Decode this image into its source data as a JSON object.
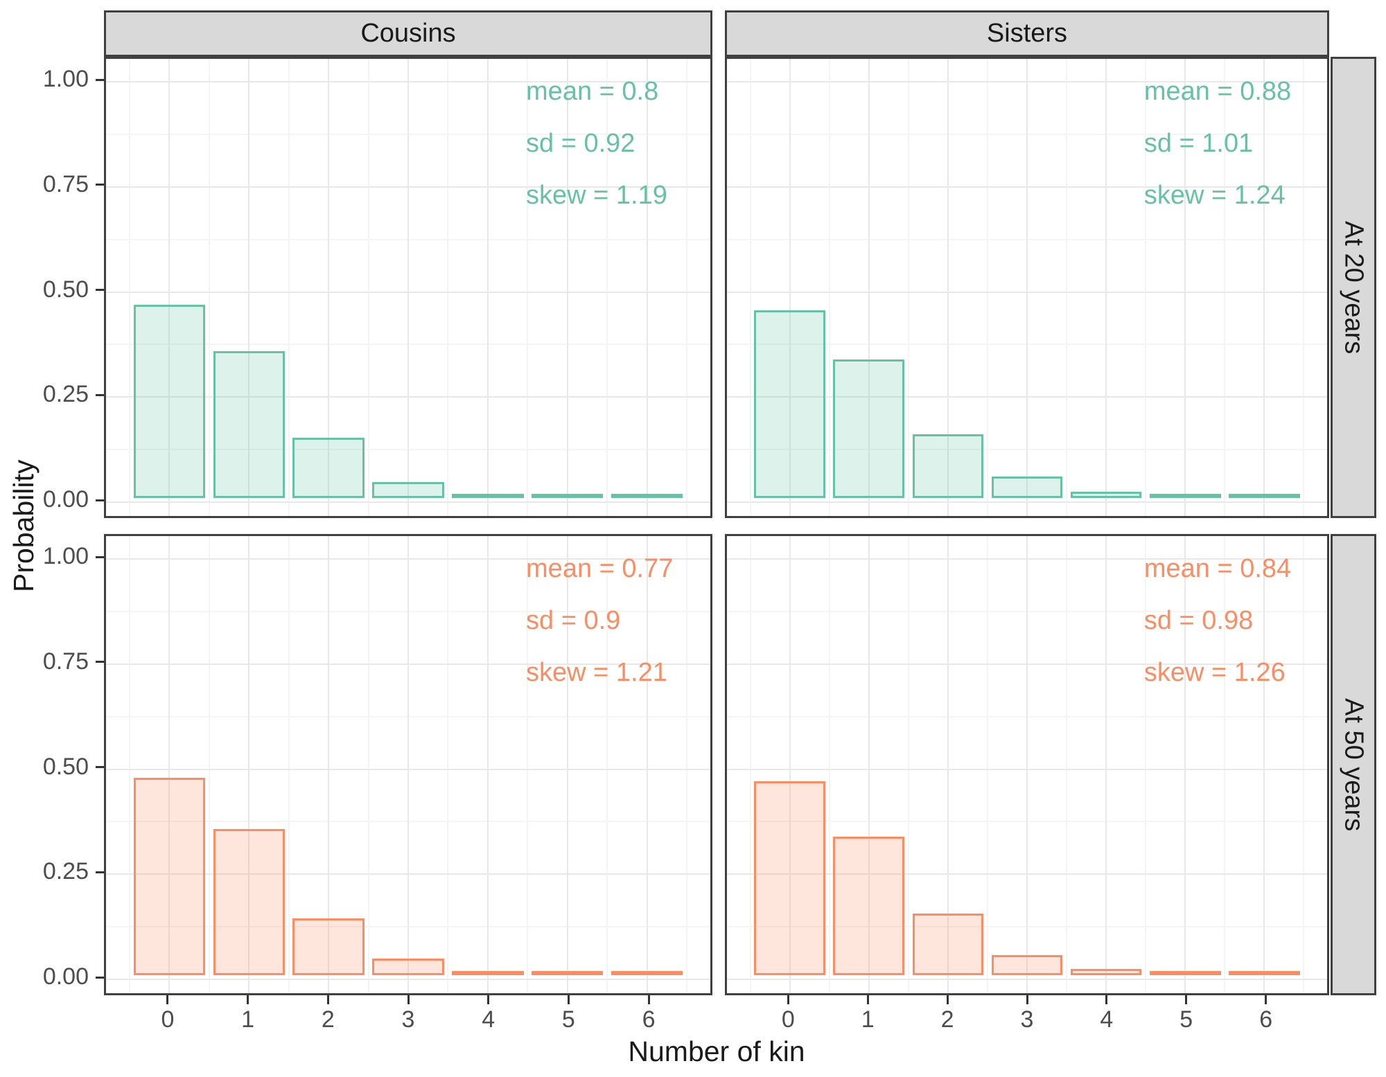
{
  "figure": {
    "x_axis_title": "Number of kin",
    "y_axis_title": "Probability",
    "column_facets": [
      "Cousins",
      "Sisters"
    ],
    "row_facets": [
      "At 20 years",
      "At 50 years"
    ],
    "y_tick_labels": [
      "1.00",
      "0.75",
      "0.50",
      "0.25",
      "0.00"
    ],
    "x_tick_labels": [
      "0",
      "1",
      "2",
      "3",
      "4",
      "5",
      "6"
    ],
    "colors": {
      "at20_accent": "#66c2a5",
      "at20_fill": "rgba(102,194,165,0.22)",
      "at50_accent": "#fc8d62",
      "at50_fill": "rgba(252,141,98,0.22)",
      "strip_background": "#d9d9d9",
      "panel_border": "#404040",
      "grid_major": "#e8e8e8",
      "grid_minor": "#f4f4f4",
      "tick_text": "#4d4d4d",
      "title_text": "#1a1a1a"
    }
  },
  "chart_data": [
    {
      "type": "bar",
      "facet_col": "Cousins",
      "facet_row": "At 20 years",
      "categories": [
        0,
        1,
        2,
        3,
        4,
        5,
        6
      ],
      "values": [
        0.46,
        0.35,
        0.144,
        0.038,
        0.009,
        0.003,
        0.001
      ],
      "annotation_lines": [
        "mean = 0.8",
        "sd = 0.92",
        "skew = 1.19"
      ],
      "stats": {
        "mean": 0.8,
        "sd": 0.92,
        "skew": 1.19
      },
      "accent": "#66c2a5",
      "fill": "rgba(102,194,165,0.22)",
      "xlabel": "Number of kin",
      "ylabel": "Probability",
      "ylim": [
        0,
        1.05
      ],
      "y_breaks": [
        0,
        0.25,
        0.5,
        0.75,
        1
      ],
      "grid": true,
      "legend": "none"
    },
    {
      "type": "bar",
      "facet_col": "Sisters",
      "facet_row": "At 20 years",
      "categories": [
        0,
        1,
        2,
        3,
        4,
        5,
        6
      ],
      "values": [
        0.446,
        0.33,
        0.152,
        0.051,
        0.015,
        0.005,
        0.002
      ],
      "annotation_lines": [
        "mean = 0.88",
        "sd = 1.01",
        "skew = 1.24"
      ],
      "stats": {
        "mean": 0.88,
        "sd": 1.01,
        "skew": 1.24
      },
      "accent": "#66c2a5",
      "fill": "rgba(102,194,165,0.22)",
      "xlabel": "Number of kin",
      "ylabel": "Probability",
      "ylim": [
        0,
        1.05
      ],
      "y_breaks": [
        0,
        0.25,
        0.5,
        0.75,
        1
      ],
      "grid": true,
      "legend": "none"
    },
    {
      "type": "bar",
      "facet_col": "Cousins",
      "facet_row": "At 50 years",
      "categories": [
        0,
        1,
        2,
        3,
        4,
        5,
        6
      ],
      "values": [
        0.47,
        0.347,
        0.135,
        0.039,
        0.009,
        0.003,
        0.001
      ],
      "annotation_lines": [
        "mean = 0.77",
        "sd = 0.9",
        "skew = 1.21"
      ],
      "stats": {
        "mean": 0.77,
        "sd": 0.9,
        "skew": 1.21
      },
      "accent": "#fc8d62",
      "fill": "rgba(252,141,98,0.22)",
      "xlabel": "Number of kin",
      "ylabel": "Probability",
      "ylim": [
        0,
        1.05
      ],
      "y_breaks": [
        0,
        0.25,
        0.5,
        0.75,
        1
      ],
      "grid": true,
      "legend": "none"
    },
    {
      "type": "bar",
      "facet_col": "Sisters",
      "facet_row": "At 50 years",
      "categories": [
        0,
        1,
        2,
        3,
        4,
        5,
        6
      ],
      "values": [
        0.461,
        0.329,
        0.146,
        0.048,
        0.015,
        0.004,
        0.002
      ],
      "annotation_lines": [
        "mean = 0.84",
        "sd = 0.98",
        "skew = 1.26"
      ],
      "stats": {
        "mean": 0.84,
        "sd": 0.98,
        "skew": 1.26
      },
      "accent": "#fc8d62",
      "fill": "rgba(252,141,98,0.22)",
      "xlabel": "Number of kin",
      "ylabel": "Probability",
      "ylim": [
        0,
        1.05
      ],
      "y_breaks": [
        0,
        0.25,
        0.5,
        0.75,
        1
      ],
      "grid": true,
      "legend": "none"
    }
  ]
}
